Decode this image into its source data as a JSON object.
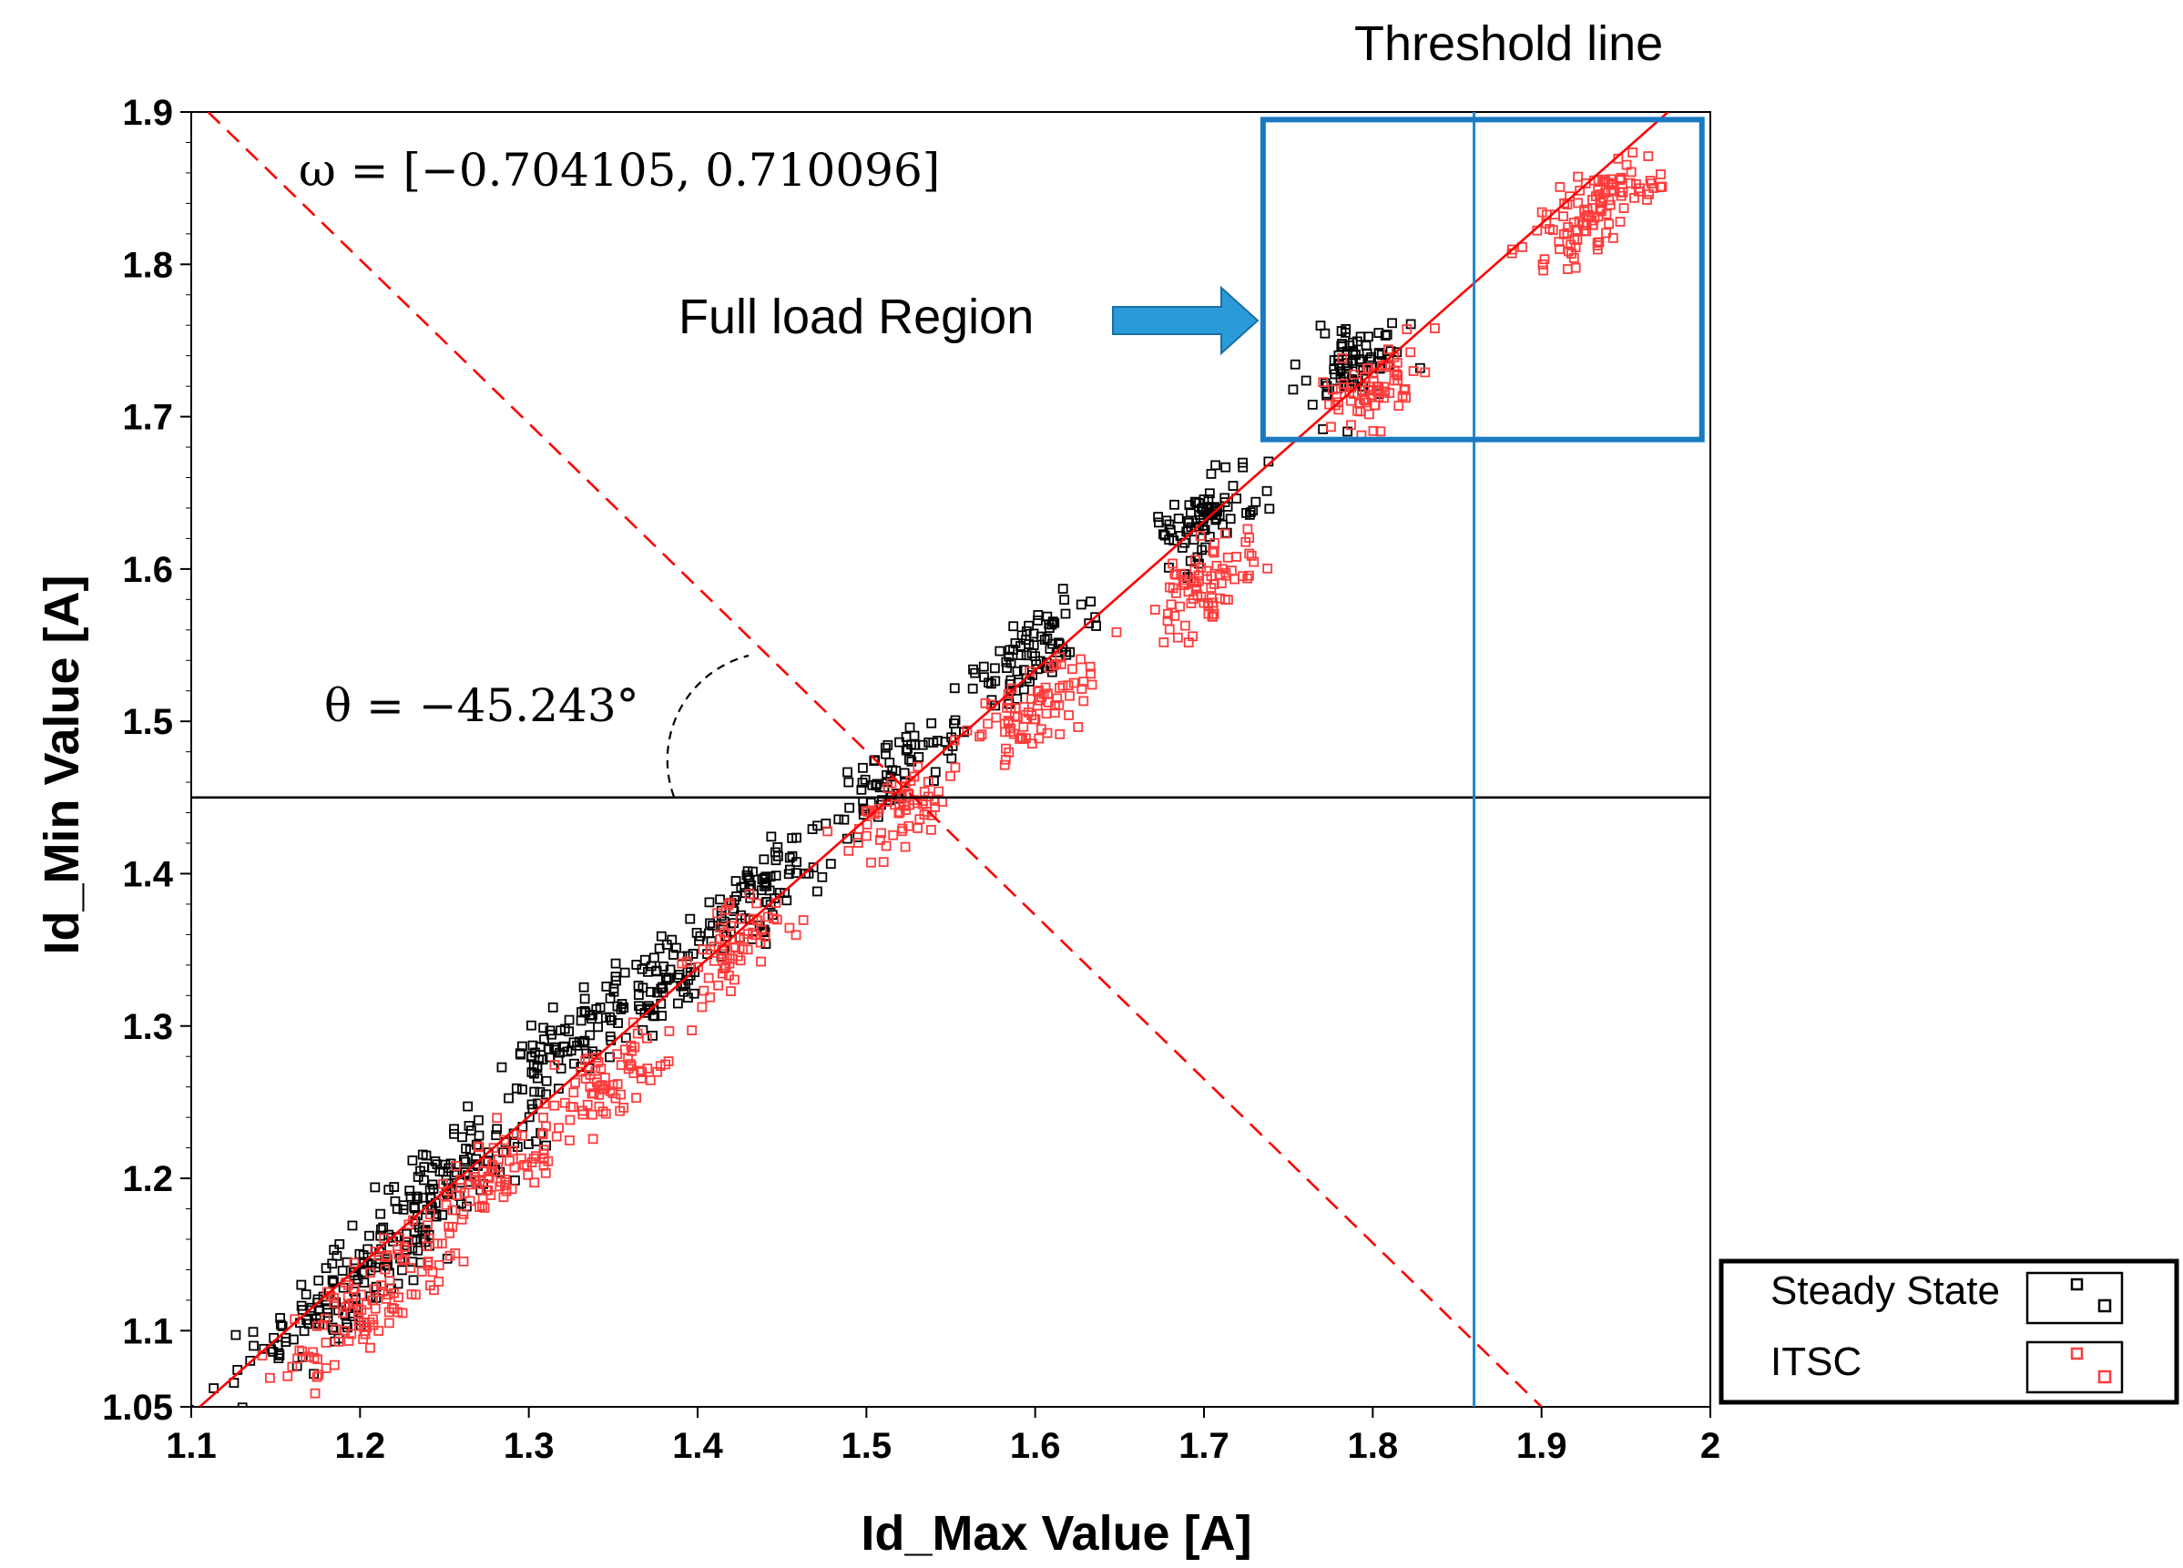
{
  "chart_data": {
    "type": "scatter",
    "title": "",
    "xlabel": "Id_Max Value [A]",
    "ylabel": "Id_Min Value [A]",
    "xlim": [
      1.1,
      2.0
    ],
    "ylim": [
      1.05,
      1.9
    ],
    "x_ticks": [
      1.1,
      1.2,
      1.3,
      1.4,
      1.5,
      1.6,
      1.7,
      1.8,
      1.9,
      2.0
    ],
    "x_tick_labels": [
      "1.1",
      "1.2",
      "1.3",
      "1.4",
      "1.5",
      "1.6",
      "1.7",
      "1.8",
      "1.9",
      "2"
    ],
    "y_ticks": [
      1.05,
      1.1,
      1.2,
      1.3,
      1.4,
      1.5,
      1.6,
      1.7,
      1.8,
      1.9
    ],
    "y_tick_labels": [
      "1.05",
      "1.1",
      "1.2",
      "1.3",
      "1.4",
      "1.5",
      "1.6",
      "1.7",
      "1.8",
      "1.9"
    ],
    "legend": {
      "placement": "outside-bottom-right",
      "entries": [
        "Steady State",
        "ITSC"
      ]
    },
    "series": [
      {
        "name": "Steady State",
        "marker": "square-open",
        "color": "#000000",
        "clusters": [
          {
            "center": [
              1.19,
              1.125
            ],
            "n": 140,
            "spread_along": 0.045
          },
          {
            "center": [
              1.26,
              1.205
            ],
            "n": 100,
            "spread_along": 0.03
          },
          {
            "center": [
              1.32,
              1.285
            ],
            "n": 80,
            "spread_along": 0.025
          },
          {
            "center": [
              1.38,
              1.33
            ],
            "n": 80,
            "spread_along": 0.025
          },
          {
            "center": [
              1.44,
              1.39
            ],
            "n": 80,
            "spread_along": 0.025
          },
          {
            "center": [
              1.52,
              1.47
            ],
            "n": 70,
            "spread_along": 0.02
          },
          {
            "center": [
              1.6,
              1.545
            ],
            "n": 80,
            "spread_along": 0.025
          },
          {
            "center": [
              1.7,
              1.635
            ],
            "n": 80,
            "spread_along": 0.02
          },
          {
            "center": [
              1.79,
              1.735
            ],
            "n": 80,
            "spread_along": 0.02
          }
        ]
      },
      {
        "name": "ITSC",
        "marker": "square-open",
        "color": "#ff3b3b",
        "clusters": [
          {
            "center": [
              1.21,
              1.125
            ],
            "n": 110,
            "spread_along": 0.035
          },
          {
            "center": [
              1.28,
              1.2
            ],
            "n": 80,
            "spread_along": 0.03
          },
          {
            "center": [
              1.35,
              1.265
            ],
            "n": 70,
            "spread_along": 0.025
          },
          {
            "center": [
              1.42,
              1.355
            ],
            "n": 60,
            "spread_along": 0.02
          },
          {
            "center": [
              1.52,
              1.44
            ],
            "n": 60,
            "spread_along": 0.02
          },
          {
            "center": [
              1.6,
              1.51
            ],
            "n": 80,
            "spread_along": 0.025
          },
          {
            "center": [
              1.7,
              1.59
            ],
            "n": 80,
            "spread_along": 0.02
          },
          {
            "center": [
              1.8,
              1.72
            ],
            "n": 70,
            "spread_along": 0.02
          },
          {
            "center": [
              1.93,
              1.835
            ],
            "n": 110,
            "spread_along": 0.025
          }
        ]
      }
    ],
    "lines": [
      {
        "name": "fit-line",
        "style": "solid",
        "color": "#ff0000",
        "from": [
          1.105,
          1.05
        ],
        "to": [
          1.975,
          1.9
        ]
      },
      {
        "name": "perpendicular-line",
        "style": "dashed",
        "color": "#ff0000",
        "from": [
          1.11,
          1.9
        ],
        "to": [
          1.9,
          1.05
        ]
      },
      {
        "name": "horizontal-line",
        "style": "solid",
        "color": "#000000",
        "y": 1.45
      },
      {
        "name": "threshold-line",
        "style": "solid",
        "color": "#1f88c8",
        "x": 1.86
      }
    ],
    "region_box": {
      "color": "#1a7ac1",
      "x0": 1.735,
      "x1": 1.995,
      "y0": 1.685,
      "y1": 1.895
    },
    "annotations": {
      "omega": "ω = [−0.704105, 0.710096]",
      "theta": "θ = −45.243°",
      "full_load": "Full load Region",
      "threshold": "Threshold line"
    }
  }
}
